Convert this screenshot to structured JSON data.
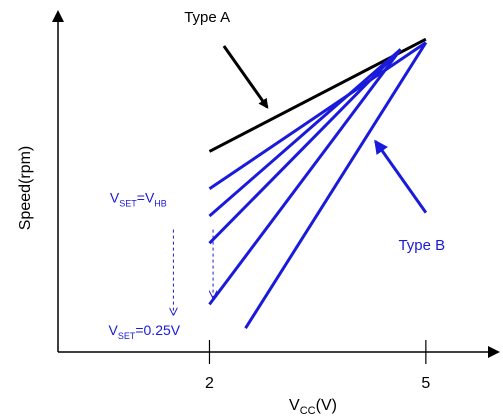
{
  "chart_data": {
    "type": "line",
    "xlabel": {
      "main": "V",
      "sub": "CC",
      "suffix": "(V)"
    },
    "ylabel": "Speed(rpm)",
    "xlim": [
      -0.1,
      6.0
    ],
    "ylim": [
      0,
      100
    ],
    "x_ticks": [
      {
        "value": 2,
        "label": "2"
      },
      {
        "value": 5,
        "label": "5"
      }
    ],
    "grid": false,
    "colors": {
      "type_a": "#000000",
      "type_b": "#1a1adb",
      "axis": "#000000"
    },
    "series": [
      {
        "name": "Type A",
        "group": "A",
        "points": [
          [
            2.0,
            59
          ],
          [
            5.0,
            92
          ]
        ]
      },
      {
        "group": "B",
        "points": [
          [
            2.0,
            48
          ],
          [
            5.0,
            91
          ]
        ]
      },
      {
        "group": "B",
        "points": [
          [
            2.0,
            40
          ],
          [
            4.65,
            89
          ]
        ]
      },
      {
        "group": "B",
        "points": [
          [
            2.0,
            32
          ],
          [
            4.65,
            89
          ]
        ]
      },
      {
        "group": "B",
        "points": [
          [
            2.0,
            14
          ],
          [
            4.65,
            89
          ]
        ]
      },
      {
        "group": "B",
        "points": [
          [
            2.5,
            7
          ],
          [
            5.0,
            91
          ]
        ]
      }
    ],
    "annotations": {
      "type_a": {
        "text": "Type A",
        "text_at": [
          1.65,
          97
        ],
        "arrow_from": [
          2.2,
          90
        ],
        "arrow_to": [
          2.8,
          72
        ]
      },
      "type_b": {
        "text": "Type B",
        "text_at": [
          4.62,
          30
        ],
        "arrow_from": [
          5.0,
          41
        ],
        "arrow_to": [
          4.3,
          62
        ]
      },
      "vset_top": {
        "main": "V",
        "sub1": "SET",
        "eq": "=V",
        "sub2": "HB",
        "text_at": [
          0.62,
          44
        ]
      },
      "vset_bottom": {
        "main": "V",
        "sub1": "SET",
        "eq": "=0.25V",
        "text_at": [
          0.6,
          5
        ]
      },
      "dashed_arrows": [
        {
          "from": [
            1.5,
            36
          ],
          "to": [
            1.5,
            11
          ]
        },
        {
          "from": [
            2.05,
            36
          ],
          "to": [
            2.05,
            16
          ]
        }
      ]
    }
  }
}
